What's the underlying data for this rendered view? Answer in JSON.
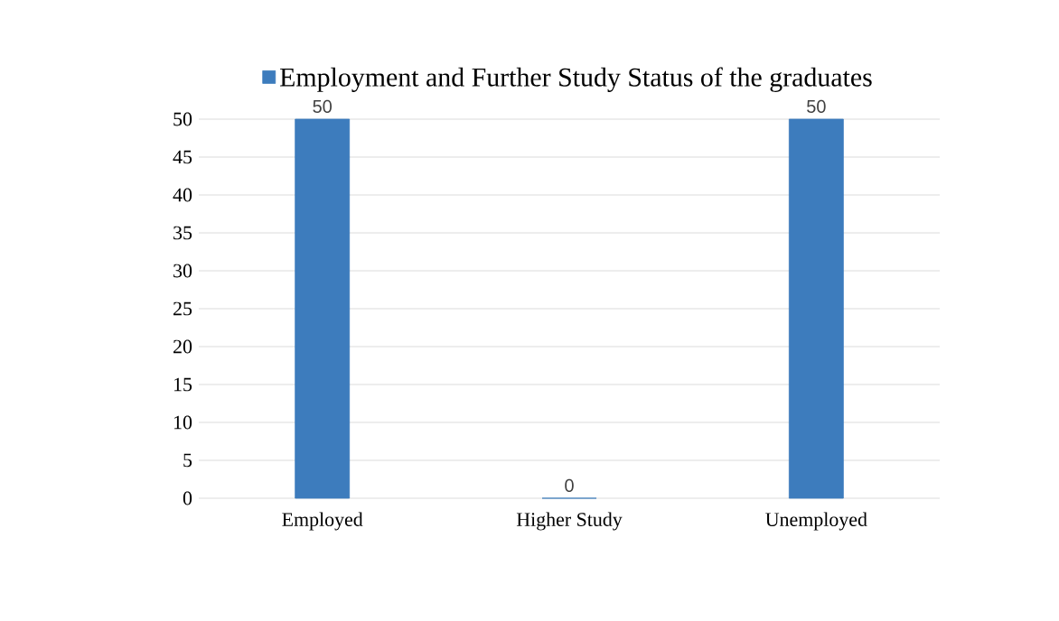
{
  "chart_data": {
    "type": "bar",
    "categories": [
      "Employed",
      "Higher Study",
      "Unemployed"
    ],
    "series": [
      {
        "name": "Employment and Further Study Status of the graduates",
        "color": "#3d7cbd",
        "values": [
          50,
          0,
          50
        ]
      }
    ],
    "ylim": [
      0,
      50
    ],
    "yticks": [
      0,
      5,
      10,
      15,
      20,
      25,
      30,
      35,
      40,
      45,
      50
    ],
    "grid": "y",
    "legend": "top",
    "data_labels": true
  }
}
